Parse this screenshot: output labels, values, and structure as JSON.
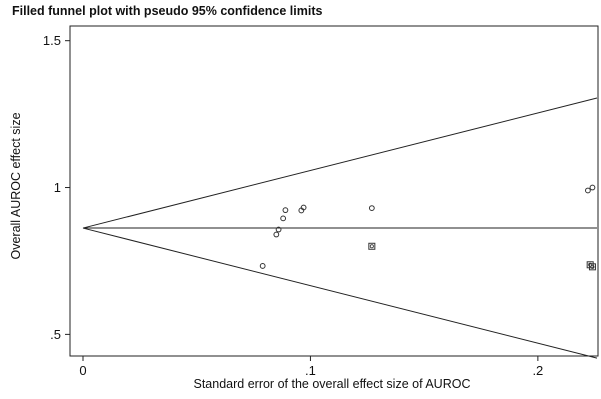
{
  "chart_data": {
    "type": "scatter",
    "title": "Filled funnel plot with pseudo 95% confidence limits",
    "xlabel": "Standard error of the overall effect size of AUROC",
    "ylabel": "Overall AUROC effect size",
    "xlim": [
      0,
      0.226
    ],
    "ylim": [
      0.44,
      1.55
    ],
    "xticks": [
      {
        "value": 0,
        "label": "0"
      },
      {
        "value": 0.1,
        "label": ".1"
      },
      {
        "value": 0.2,
        "label": ".2"
      }
    ],
    "yticks": [
      {
        "value": 0.5,
        "label": ".5"
      },
      {
        "value": 1,
        "label": "1"
      },
      {
        "value": 1.5,
        "label": "1.5"
      }
    ],
    "pooled_effect": 0.862,
    "ci_multiplier": 1.96,
    "grid": false,
    "series": [
      {
        "marker": "circle",
        "points": [
          {
            "x": 0.079,
            "y": 0.733
          },
          {
            "x": 0.085,
            "y": 0.84
          },
          {
            "x": 0.086,
            "y": 0.857
          },
          {
            "x": 0.088,
            "y": 0.895
          },
          {
            "x": 0.089,
            "y": 0.923
          },
          {
            "x": 0.096,
            "y": 0.922
          },
          {
            "x": 0.097,
            "y": 0.932
          },
          {
            "x": 0.127,
            "y": 0.93
          },
          {
            "x": 0.222,
            "y": 0.99
          },
          {
            "x": 0.224,
            "y": 1.0
          }
        ]
      },
      {
        "marker": "square",
        "points": [
          {
            "x": 0.127,
            "y": 0.8
          },
          {
            "x": 0.223,
            "y": 0.737
          },
          {
            "x": 0.224,
            "y": 0.73
          }
        ]
      }
    ]
  }
}
